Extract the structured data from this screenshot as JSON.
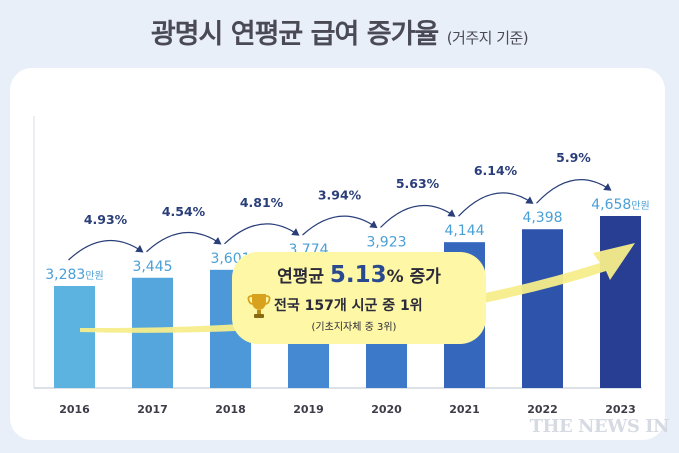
{
  "header": {
    "title": "광명시 연평균 급여 증가율",
    "subtitle": "(거주지 기준)"
  },
  "callout": {
    "line1_prefix": "연평균 ",
    "line1_value": "5.13",
    "line1_suffix": "% 증가",
    "line2": "전국 157개 시군 중 1위",
    "line3": "(기초지자체 중 3위)",
    "trophy_icon": "trophy-icon"
  },
  "watermark": "THE NEWS IN",
  "colors": {
    "bars": [
      "#5db3e0",
      "#55a6dd",
      "#4d98d8",
      "#4589d2",
      "#3d79c9",
      "#3567bd",
      "#2e53ab",
      "#283e93"
    ],
    "arrow": "#f5ed8a",
    "callout_fill": "#fdf7a6",
    "label_value": "#4aa0d6",
    "growth_text": "#2a3f7a"
  },
  "chart_data": {
    "type": "bar",
    "categories": [
      "2016",
      "2017",
      "2018",
      "2019",
      "2020",
      "2021",
      "2022",
      "2023"
    ],
    "values": [
      3283,
      3445,
      3601,
      3774,
      3923,
      4144,
      4398,
      4658
    ],
    "value_labels": [
      "3,283만원",
      "3,445",
      "3,601",
      "3,774",
      "3,923",
      "4,144",
      "4,398",
      "4,658만원"
    ],
    "growth_rates": [
      "4.93%",
      "4.54%",
      "4.81%",
      "3.94%",
      "5.63%",
      "6.14%",
      "5.9%"
    ],
    "unit": "만원"
  }
}
